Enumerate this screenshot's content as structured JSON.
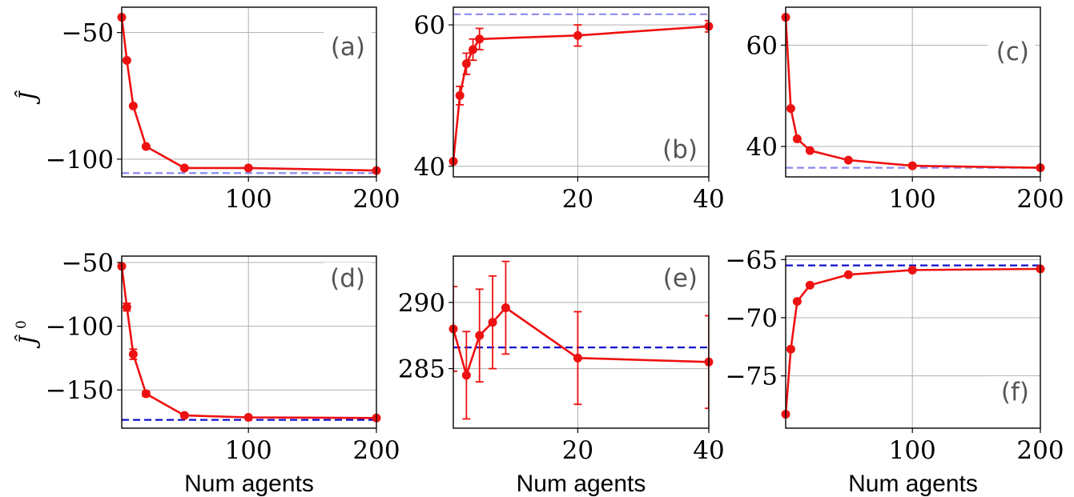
{
  "row_labels": [
    {
      "base": "Ĵ",
      "sup": ""
    },
    {
      "base": "Ĵ",
      "sup": "0"
    }
  ],
  "chart_data": [
    {
      "type": "line",
      "panel_label": "(a)",
      "xlabel": "",
      "x": [
        1,
        5,
        10,
        20,
        50,
        100,
        200
      ],
      "y": [
        -44,
        -61,
        -79,
        -95,
        -103.5,
        -103.5,
        -104.5
      ],
      "err": [
        0,
        0,
        0,
        0,
        0,
        0,
        0
      ],
      "xlim": [
        1,
        200
      ],
      "ylim": [
        -107,
        -40
      ],
      "xticks": [
        100,
        200
      ],
      "xtick_labels": [
        "100",
        "200"
      ],
      "yticks": [
        -50,
        -100
      ],
      "ytick_labels": [
        "−50",
        "−100"
      ],
      "reference": -105.5,
      "reference_color": "#8a8aef",
      "series_color": "#ee1111",
      "grid": true
    },
    {
      "type": "line",
      "panel_label": "(b)",
      "xlabel": "",
      "x": [
        1,
        2,
        3,
        4,
        5,
        20,
        40
      ],
      "y": [
        40.7,
        50,
        54.5,
        56.5,
        58,
        58.5,
        59.8
      ],
      "err": [
        0,
        1.3,
        1.5,
        1.5,
        1.5,
        1.5,
        0.8
      ],
      "xlim": [
        1,
        40
      ],
      "ylim": [
        38.5,
        62.5
      ],
      "xticks": [
        20,
        40
      ],
      "xtick_labels": [
        "20",
        "40"
      ],
      "yticks": [
        40,
        60
      ],
      "ytick_labels": [
        "40",
        "60"
      ],
      "reference": 61.5,
      "reference_color": "#8a8aef",
      "series_color": "#ee1111",
      "grid": true
    },
    {
      "type": "line",
      "panel_label": "(c)",
      "xlabel": "",
      "x": [
        1,
        5,
        10,
        20,
        50,
        100,
        200
      ],
      "y": [
        65.5,
        47.5,
        41.5,
        39.2,
        37.3,
        36.2,
        35.8
      ],
      "err": [
        0,
        0,
        0,
        0,
        0,
        0,
        0
      ],
      "xlim": [
        1,
        200
      ],
      "ylim": [
        34,
        67.5
      ],
      "xticks": [
        100,
        200
      ],
      "xtick_labels": [
        "100",
        "200"
      ],
      "yticks": [
        40,
        60
      ],
      "ytick_labels": [
        "40",
        "60"
      ],
      "reference": 35.8,
      "reference_color": "#8a8aef",
      "series_color": "#ee1111",
      "grid": true
    },
    {
      "type": "line",
      "panel_label": "(d)",
      "xlabel": "Num agents",
      "x": [
        1,
        5,
        10,
        20,
        50,
        100,
        200
      ],
      "y": [
        -53,
        -85,
        -122,
        -153,
        -170,
        -171.5,
        -172
      ],
      "err": [
        0,
        3,
        4,
        2,
        1,
        1,
        1
      ],
      "xlim": [
        1,
        200
      ],
      "ylim": [
        -180,
        -45
      ],
      "xticks": [
        100,
        200
      ],
      "xtick_labels": [
        "100",
        "200"
      ],
      "yticks": [
        -50,
        -100,
        -150
      ],
      "ytick_labels": [
        "−50",
        "−100",
        "−150"
      ],
      "reference": -173.5,
      "reference_color": "#1010cc",
      "series_color": "#ee1111",
      "grid": true
    },
    {
      "type": "line",
      "panel_label": "(e)",
      "xlabel": "Num agents",
      "x": [
        1,
        3,
        5,
        7,
        9,
        20,
        40
      ],
      "y": [
        288,
        284.5,
        287.5,
        288.5,
        289.6,
        285.8,
        285.5
      ],
      "err": [
        3.2,
        3.3,
        3.5,
        3.5,
        3.5,
        3.5,
        3.5
      ],
      "xlim": [
        1,
        40
      ],
      "ylim": [
        280.5,
        293.5
      ],
      "xticks": [
        20,
        40
      ],
      "xtick_labels": [
        "20",
        "40"
      ],
      "yticks": [
        285,
        290
      ],
      "ytick_labels": [
        "285",
        "290"
      ],
      "reference": 286.6,
      "reference_color": "#1010cc",
      "series_color": "#ee1111",
      "grid": true
    },
    {
      "type": "line",
      "panel_label": "(f)",
      "xlabel": "Num agents",
      "x": [
        1,
        5,
        10,
        20,
        50,
        100,
        200
      ],
      "y": [
        -78.3,
        -72.7,
        -68.6,
        -67.2,
        -66.3,
        -65.9,
        -65.8
      ],
      "err": [
        0.15,
        0.15,
        0.1,
        0.1,
        0.1,
        0.1,
        0.1
      ],
      "xlim": [
        1,
        200
      ],
      "ylim": [
        -79.5,
        -64.7
      ],
      "xticks": [
        100,
        200
      ],
      "xtick_labels": [
        "100",
        "200"
      ],
      "yticks": [
        -65,
        -70,
        -75
      ],
      "ytick_labels": [
        "−65",
        "−70",
        "−75"
      ],
      "reference": -65.5,
      "reference_color": "#1010cc",
      "series_color": "#ee1111",
      "grid": true
    }
  ]
}
